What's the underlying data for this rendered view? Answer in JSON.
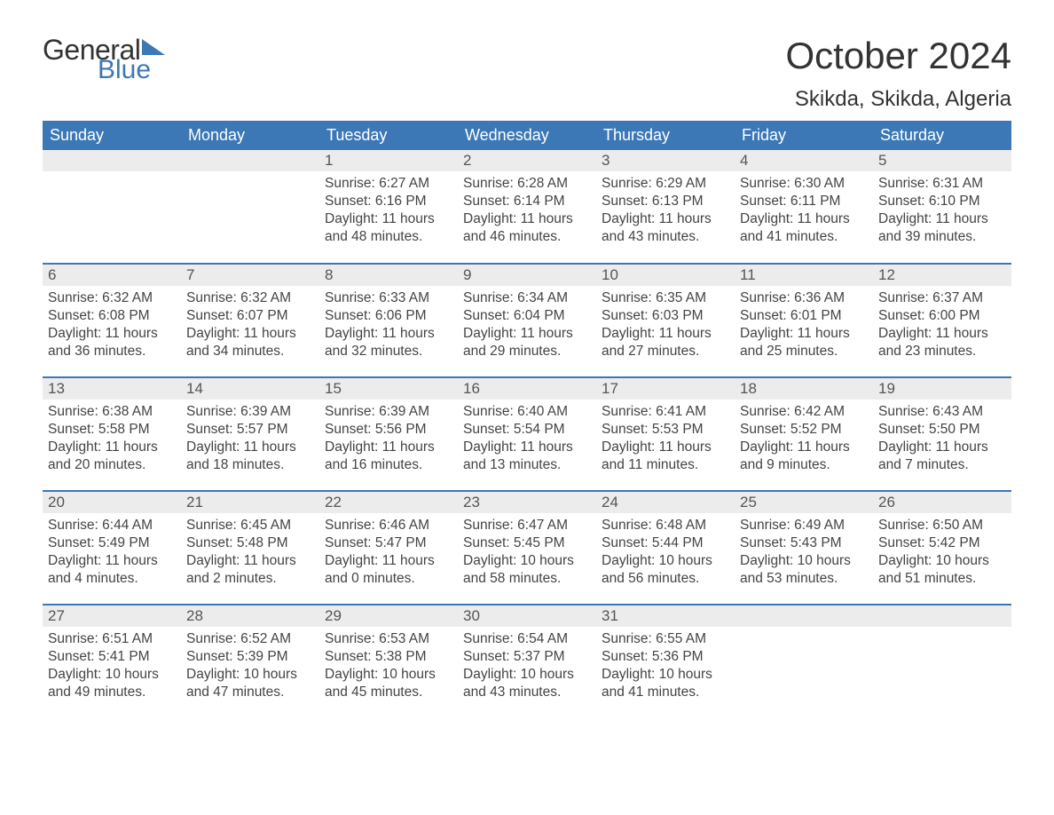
{
  "logo": {
    "text_general": "General",
    "text_blue": "Blue",
    "triangle_color": "#3b78b5"
  },
  "header": {
    "month_title": "October 2024",
    "location": "Skikda, Skikda, Algeria"
  },
  "colors": {
    "header_bg": "#3b78b5",
    "header_text": "#ffffff",
    "daynum_bg": "#ececec",
    "row_divider": "#3b78b5",
    "body_text": "#444444",
    "page_bg": "#ffffff"
  },
  "weekdays": [
    "Sunday",
    "Monday",
    "Tuesday",
    "Wednesday",
    "Thursday",
    "Friday",
    "Saturday"
  ],
  "weeks": [
    [
      null,
      null,
      {
        "day": "1",
        "sunrise": "Sunrise: 6:27 AM",
        "sunset": "Sunset: 6:16 PM",
        "dl1": "Daylight: 11 hours",
        "dl2": "and 48 minutes."
      },
      {
        "day": "2",
        "sunrise": "Sunrise: 6:28 AM",
        "sunset": "Sunset: 6:14 PM",
        "dl1": "Daylight: 11 hours",
        "dl2": "and 46 minutes."
      },
      {
        "day": "3",
        "sunrise": "Sunrise: 6:29 AM",
        "sunset": "Sunset: 6:13 PM",
        "dl1": "Daylight: 11 hours",
        "dl2": "and 43 minutes."
      },
      {
        "day": "4",
        "sunrise": "Sunrise: 6:30 AM",
        "sunset": "Sunset: 6:11 PM",
        "dl1": "Daylight: 11 hours",
        "dl2": "and 41 minutes."
      },
      {
        "day": "5",
        "sunrise": "Sunrise: 6:31 AM",
        "sunset": "Sunset: 6:10 PM",
        "dl1": "Daylight: 11 hours",
        "dl2": "and 39 minutes."
      }
    ],
    [
      {
        "day": "6",
        "sunrise": "Sunrise: 6:32 AM",
        "sunset": "Sunset: 6:08 PM",
        "dl1": "Daylight: 11 hours",
        "dl2": "and 36 minutes."
      },
      {
        "day": "7",
        "sunrise": "Sunrise: 6:32 AM",
        "sunset": "Sunset: 6:07 PM",
        "dl1": "Daylight: 11 hours",
        "dl2": "and 34 minutes."
      },
      {
        "day": "8",
        "sunrise": "Sunrise: 6:33 AM",
        "sunset": "Sunset: 6:06 PM",
        "dl1": "Daylight: 11 hours",
        "dl2": "and 32 minutes."
      },
      {
        "day": "9",
        "sunrise": "Sunrise: 6:34 AM",
        "sunset": "Sunset: 6:04 PM",
        "dl1": "Daylight: 11 hours",
        "dl2": "and 29 minutes."
      },
      {
        "day": "10",
        "sunrise": "Sunrise: 6:35 AM",
        "sunset": "Sunset: 6:03 PM",
        "dl1": "Daylight: 11 hours",
        "dl2": "and 27 minutes."
      },
      {
        "day": "11",
        "sunrise": "Sunrise: 6:36 AM",
        "sunset": "Sunset: 6:01 PM",
        "dl1": "Daylight: 11 hours",
        "dl2": "and 25 minutes."
      },
      {
        "day": "12",
        "sunrise": "Sunrise: 6:37 AM",
        "sunset": "Sunset: 6:00 PM",
        "dl1": "Daylight: 11 hours",
        "dl2": "and 23 minutes."
      }
    ],
    [
      {
        "day": "13",
        "sunrise": "Sunrise: 6:38 AM",
        "sunset": "Sunset: 5:58 PM",
        "dl1": "Daylight: 11 hours",
        "dl2": "and 20 minutes."
      },
      {
        "day": "14",
        "sunrise": "Sunrise: 6:39 AM",
        "sunset": "Sunset: 5:57 PM",
        "dl1": "Daylight: 11 hours",
        "dl2": "and 18 minutes."
      },
      {
        "day": "15",
        "sunrise": "Sunrise: 6:39 AM",
        "sunset": "Sunset: 5:56 PM",
        "dl1": "Daylight: 11 hours",
        "dl2": "and 16 minutes."
      },
      {
        "day": "16",
        "sunrise": "Sunrise: 6:40 AM",
        "sunset": "Sunset: 5:54 PM",
        "dl1": "Daylight: 11 hours",
        "dl2": "and 13 minutes."
      },
      {
        "day": "17",
        "sunrise": "Sunrise: 6:41 AM",
        "sunset": "Sunset: 5:53 PM",
        "dl1": "Daylight: 11 hours",
        "dl2": "and 11 minutes."
      },
      {
        "day": "18",
        "sunrise": "Sunrise: 6:42 AM",
        "sunset": "Sunset: 5:52 PM",
        "dl1": "Daylight: 11 hours",
        "dl2": "and 9 minutes."
      },
      {
        "day": "19",
        "sunrise": "Sunrise: 6:43 AM",
        "sunset": "Sunset: 5:50 PM",
        "dl1": "Daylight: 11 hours",
        "dl2": "and 7 minutes."
      }
    ],
    [
      {
        "day": "20",
        "sunrise": "Sunrise: 6:44 AM",
        "sunset": "Sunset: 5:49 PM",
        "dl1": "Daylight: 11 hours",
        "dl2": "and 4 minutes."
      },
      {
        "day": "21",
        "sunrise": "Sunrise: 6:45 AM",
        "sunset": "Sunset: 5:48 PM",
        "dl1": "Daylight: 11 hours",
        "dl2": "and 2 minutes."
      },
      {
        "day": "22",
        "sunrise": "Sunrise: 6:46 AM",
        "sunset": "Sunset: 5:47 PM",
        "dl1": "Daylight: 11 hours",
        "dl2": "and 0 minutes."
      },
      {
        "day": "23",
        "sunrise": "Sunrise: 6:47 AM",
        "sunset": "Sunset: 5:45 PM",
        "dl1": "Daylight: 10 hours",
        "dl2": "and 58 minutes."
      },
      {
        "day": "24",
        "sunrise": "Sunrise: 6:48 AM",
        "sunset": "Sunset: 5:44 PM",
        "dl1": "Daylight: 10 hours",
        "dl2": "and 56 minutes."
      },
      {
        "day": "25",
        "sunrise": "Sunrise: 6:49 AM",
        "sunset": "Sunset: 5:43 PM",
        "dl1": "Daylight: 10 hours",
        "dl2": "and 53 minutes."
      },
      {
        "day": "26",
        "sunrise": "Sunrise: 6:50 AM",
        "sunset": "Sunset: 5:42 PM",
        "dl1": "Daylight: 10 hours",
        "dl2": "and 51 minutes."
      }
    ],
    [
      {
        "day": "27",
        "sunrise": "Sunrise: 6:51 AM",
        "sunset": "Sunset: 5:41 PM",
        "dl1": "Daylight: 10 hours",
        "dl2": "and 49 minutes."
      },
      {
        "day": "28",
        "sunrise": "Sunrise: 6:52 AM",
        "sunset": "Sunset: 5:39 PM",
        "dl1": "Daylight: 10 hours",
        "dl2": "and 47 minutes."
      },
      {
        "day": "29",
        "sunrise": "Sunrise: 6:53 AM",
        "sunset": "Sunset: 5:38 PM",
        "dl1": "Daylight: 10 hours",
        "dl2": "and 45 minutes."
      },
      {
        "day": "30",
        "sunrise": "Sunrise: 6:54 AM",
        "sunset": "Sunset: 5:37 PM",
        "dl1": "Daylight: 10 hours",
        "dl2": "and 43 minutes."
      },
      {
        "day": "31",
        "sunrise": "Sunrise: 6:55 AM",
        "sunset": "Sunset: 5:36 PM",
        "dl1": "Daylight: 10 hours",
        "dl2": "and 41 minutes."
      },
      null,
      null
    ]
  ]
}
